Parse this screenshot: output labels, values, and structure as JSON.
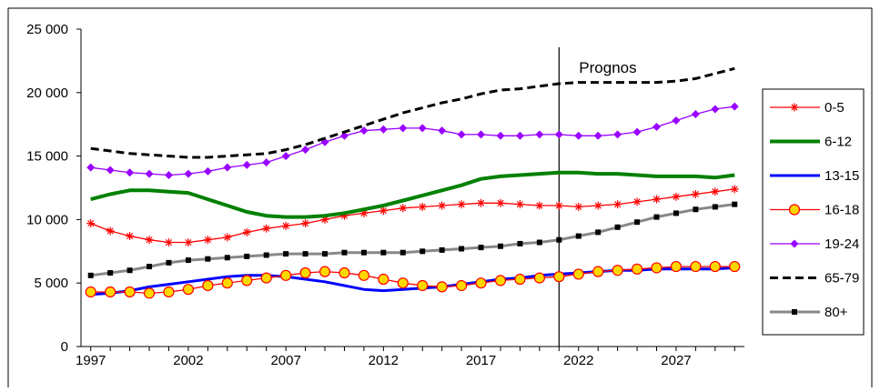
{
  "chart_data": {
    "type": "line",
    "title": "",
    "xlabel": "",
    "ylabel": "",
    "annotation": "Prognos",
    "annotation_x": 2021,
    "xlim": [
      1996.5,
      2030.5
    ],
    "ylim": [
      0,
      25000
    ],
    "x_ticks": [
      1997,
      2002,
      2007,
      2012,
      2017,
      2022,
      2027
    ],
    "x_tick_labels": [
      "1997",
      "2002",
      "2007",
      "2012",
      "2017",
      "2022",
      "2027"
    ],
    "y_ticks": [
      0,
      5000,
      10000,
      15000,
      20000,
      25000
    ],
    "y_tick_labels": [
      "0",
      "5 000",
      "10 000",
      "15 000",
      "20 000",
      "25 000"
    ],
    "grid": false,
    "legend_position": "right",
    "x": [
      1997,
      1998,
      1999,
      2000,
      2001,
      2002,
      2003,
      2004,
      2005,
      2006,
      2007,
      2008,
      2009,
      2010,
      2011,
      2012,
      2013,
      2014,
      2015,
      2016,
      2017,
      2018,
      2019,
      2020,
      2021,
      2022,
      2023,
      2024,
      2025,
      2026,
      2027,
      2028,
      2029,
      2030
    ],
    "series": [
      {
        "name": "0-5",
        "color": "#ff0000",
        "stroke_width": 1.3,
        "dash": "",
        "marker": "star",
        "values": [
          9700,
          9100,
          8700,
          8400,
          8200,
          8200,
          8400,
          8600,
          9000,
          9300,
          9500,
          9700,
          10000,
          10300,
          10500,
          10700,
          10900,
          11000,
          11100,
          11200,
          11300,
          11300,
          11200,
          11100,
          11100,
          11000,
          11100,
          11200,
          11400,
          11600,
          11800,
          12000,
          12200,
          12400
        ]
      },
      {
        "name": "6-12",
        "color": "#008000",
        "stroke_width": 4,
        "dash": "",
        "marker": "none",
        "values": [
          11600,
          12000,
          12300,
          12300,
          12200,
          12100,
          11600,
          11100,
          10600,
          10300,
          10200,
          10200,
          10300,
          10500,
          10800,
          11100,
          11500,
          11900,
          12300,
          12700,
          13200,
          13400,
          13500,
          13600,
          13700,
          13700,
          13600,
          13600,
          13500,
          13400,
          13400,
          13400,
          13300,
          13500
        ]
      },
      {
        "name": "13-15",
        "color": "#0000ff",
        "stroke_width": 3,
        "dash": "",
        "marker": "none",
        "values": [
          4100,
          4200,
          4400,
          4700,
          4900,
          5100,
          5300,
          5500,
          5600,
          5600,
          5500,
          5300,
          5100,
          4800,
          4500,
          4400,
          4500,
          4600,
          4700,
          4900,
          5100,
          5300,
          5400,
          5600,
          5700,
          5800,
          5900,
          6000,
          6000,
          6100,
          6100,
          6100,
          6100,
          6200
        ]
      },
      {
        "name": "16-18",
        "color": "#ff0000",
        "stroke_width": 1.3,
        "dash": "",
        "marker": "circle",
        "values": [
          4300,
          4300,
          4300,
          4200,
          4300,
          4500,
          4800,
          5000,
          5200,
          5400,
          5600,
          5800,
          5900,
          5800,
          5600,
          5300,
          5000,
          4800,
          4700,
          4800,
          5000,
          5200,
          5300,
          5400,
          5500,
          5700,
          5900,
          6000,
          6100,
          6200,
          6300,
          6300,
          6300,
          6300
        ]
      },
      {
        "name": "19-24",
        "color": "#9900ff",
        "stroke_width": 1.3,
        "dash": "",
        "marker": "diamond",
        "values": [
          14100,
          13900,
          13700,
          13600,
          13500,
          13600,
          13800,
          14100,
          14300,
          14500,
          15000,
          15500,
          16100,
          16600,
          17000,
          17100,
          17200,
          17200,
          17000,
          16700,
          16700,
          16600,
          16600,
          16700,
          16700,
          16600,
          16600,
          16700,
          16900,
          17300,
          17800,
          18300,
          18700,
          18900
        ]
      },
      {
        "name": "65-79",
        "color": "#000000",
        "stroke_width": 3,
        "dash": "9,5",
        "marker": "none",
        "values": [
          15600,
          15400,
          15200,
          15100,
          15000,
          14900,
          14900,
          15000,
          15100,
          15200,
          15500,
          15900,
          16400,
          16900,
          17400,
          17900,
          18400,
          18800,
          19200,
          19500,
          19900,
          20200,
          20300,
          20500,
          20700,
          20800,
          20800,
          20800,
          20800,
          20800,
          20900,
          21100,
          21500,
          21900
        ]
      },
      {
        "name": "80+",
        "color": "#888888",
        "stroke_width": 3,
        "dash": "",
        "marker": "square",
        "values": [
          5600,
          5800,
          6000,
          6300,
          6600,
          6800,
          6900,
          7000,
          7100,
          7200,
          7300,
          7300,
          7300,
          7400,
          7400,
          7400,
          7400,
          7500,
          7600,
          7700,
          7800,
          7900,
          8100,
          8200,
          8400,
          8700,
          9000,
          9400,
          9800,
          10200,
          10500,
          10800,
          11000,
          11200
        ]
      }
    ]
  }
}
